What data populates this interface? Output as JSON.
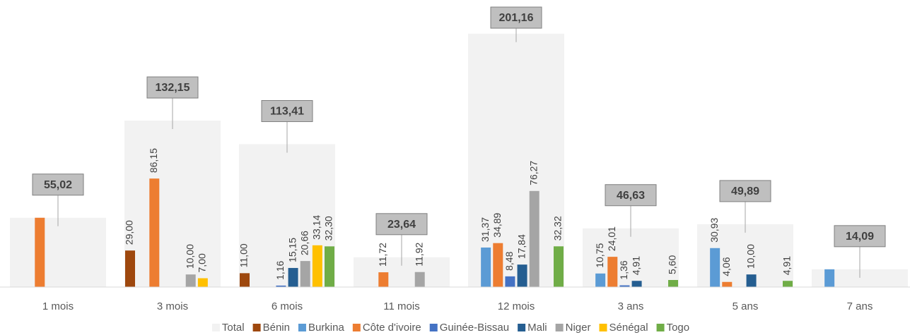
{
  "chart_data": {
    "type": "bar",
    "categories": [
      "1 mois",
      "3 mois",
      "6 mois",
      "11 mois",
      "12 mois",
      "3 ans",
      "5 ans",
      "7 ans"
    ],
    "ylim": [
      0,
      210
    ],
    "series": [
      {
        "name": "Total",
        "color": "#f2f2f2",
        "values": [
          55.02,
          132.15,
          113.41,
          23.64,
          201.16,
          46.63,
          49.89,
          14.09
        ],
        "value_labels": [
          "55,02",
          "132,15",
          "113,41",
          "23,64",
          "201,16",
          "46,63",
          "49,89",
          "14,09"
        ]
      },
      {
        "name": "Bénin",
        "color": "#9e480e",
        "values": [
          null,
          29.0,
          11.0,
          null,
          null,
          null,
          null,
          null
        ],
        "value_labels": [
          null,
          "29,00",
          "11,00",
          null,
          null,
          null,
          null,
          null
        ]
      },
      {
        "name": "Burkina",
        "color": "#5b9bd5",
        "values": [
          null,
          null,
          null,
          null,
          31.37,
          10.75,
          30.93,
          14.09
        ],
        "value_labels": [
          null,
          null,
          null,
          null,
          "31,37",
          "10,75",
          "30,93",
          null
        ]
      },
      {
        "name": "Côte d'ivoire",
        "color": "#ed7d31",
        "values": [
          55.02,
          86.15,
          null,
          11.72,
          34.89,
          24.01,
          4.06,
          null
        ],
        "value_labels": [
          null,
          "86,15",
          null,
          "11,72",
          "34,89",
          "24,01",
          "4,06",
          null
        ]
      },
      {
        "name": "Guinée-Bissau",
        "color": "#4472c4",
        "values": [
          null,
          null,
          1.16,
          null,
          8.48,
          1.36,
          null,
          null
        ],
        "value_labels": [
          null,
          null,
          "1,16",
          null,
          "8,48",
          "1,36",
          null,
          null
        ]
      },
      {
        "name": "Mali",
        "color": "#255e91",
        "values": [
          null,
          null,
          15.15,
          null,
          17.84,
          4.91,
          10.0,
          null
        ],
        "value_labels": [
          null,
          null,
          "15,15",
          null,
          "17,84",
          "4,91",
          "10,00",
          null
        ]
      },
      {
        "name": "Niger",
        "color": "#a5a5a5",
        "values": [
          null,
          10.0,
          20.66,
          11.92,
          76.27,
          null,
          null,
          null
        ],
        "value_labels": [
          null,
          "10,00",
          "20,66",
          "11,92",
          "76,27",
          null,
          null,
          null
        ]
      },
      {
        "name": "Sénégal",
        "color": "#ffc000",
        "values": [
          null,
          7.0,
          33.14,
          null,
          null,
          null,
          null,
          null
        ],
        "value_labels": [
          null,
          "7,00",
          "33,14",
          null,
          null,
          null,
          null,
          null
        ]
      },
      {
        "name": "Togo",
        "color": "#70ad47",
        "values": [
          null,
          null,
          32.3,
          null,
          32.32,
          5.6,
          4.91,
          null
        ],
        "value_labels": [
          null,
          null,
          "32,30",
          null,
          "32,32",
          "5,60",
          "4,91",
          null
        ]
      }
    ]
  }
}
